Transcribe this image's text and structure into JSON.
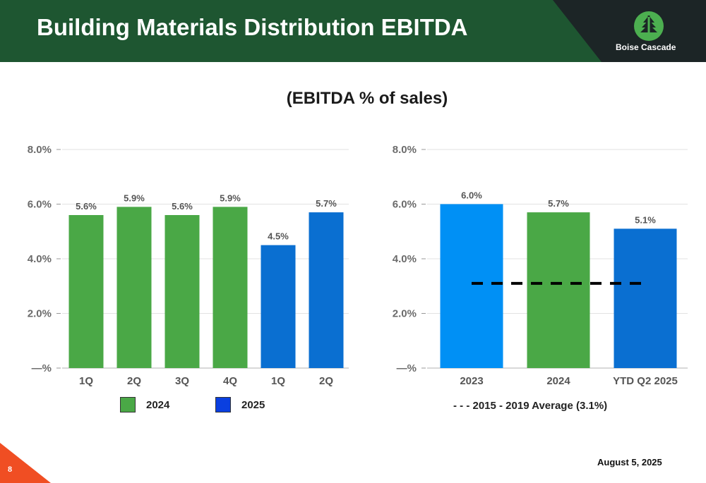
{
  "header": {
    "title": "Building Materials Distribution EBITDA",
    "logo_text": "Boise Cascade",
    "logo_icon": "tree-icon"
  },
  "subtitle": "(EBITDA % of sales)",
  "colors": {
    "header_green": "#1e5631",
    "logo_dark": "#1c2526",
    "logo_green": "#4caf50",
    "green_2024": "#4aa846",
    "blue_2025": "#0a6fd1",
    "blue_2023": "#0090f5",
    "corner_orange": "#f04e23"
  },
  "chart_data": [
    {
      "type": "bar",
      "categories": [
        "1Q",
        "2Q",
        "3Q",
        "4Q",
        "1Q",
        "2Q"
      ],
      "values": [
        5.6,
        5.9,
        5.6,
        5.9,
        4.5,
        5.7
      ],
      "data_labels": [
        "5.6%",
        "5.9%",
        "5.6%",
        "5.9%",
        "4.5%",
        "5.7%"
      ],
      "bar_series": [
        "2024",
        "2024",
        "2024",
        "2024",
        "2025",
        "2025"
      ],
      "series": [
        {
          "name": "2024",
          "color": "#4aa846"
        },
        {
          "name": "2025",
          "color": "#0a6fd1"
        }
      ],
      "yticks": [
        "—%",
        "2.0%",
        "4.0%",
        "6.0%",
        "8.0%"
      ],
      "ylim": [
        0,
        8
      ],
      "grid": true,
      "legend": "bottom"
    },
    {
      "type": "bar",
      "categories": [
        "2023",
        "2024",
        "YTD Q2 2025"
      ],
      "values": [
        6.0,
        5.7,
        5.1
      ],
      "data_labels": [
        "6.0%",
        "5.7%",
        "5.1%"
      ],
      "bar_colors": [
        "#0090f5",
        "#4aa846",
        "#0a6fd1"
      ],
      "yticks": [
        "—%",
        "2.0%",
        "4.0%",
        "6.0%",
        "8.0%"
      ],
      "ylim": [
        0,
        8
      ],
      "grid": true,
      "reference_line": {
        "value": 3.1,
        "label": "- - - 2015 - 2019 Average (3.1%)",
        "style": "dashed"
      },
      "legend": "bottom"
    }
  ],
  "footer": {
    "page_number": "8",
    "date": "August 5, 2025"
  }
}
